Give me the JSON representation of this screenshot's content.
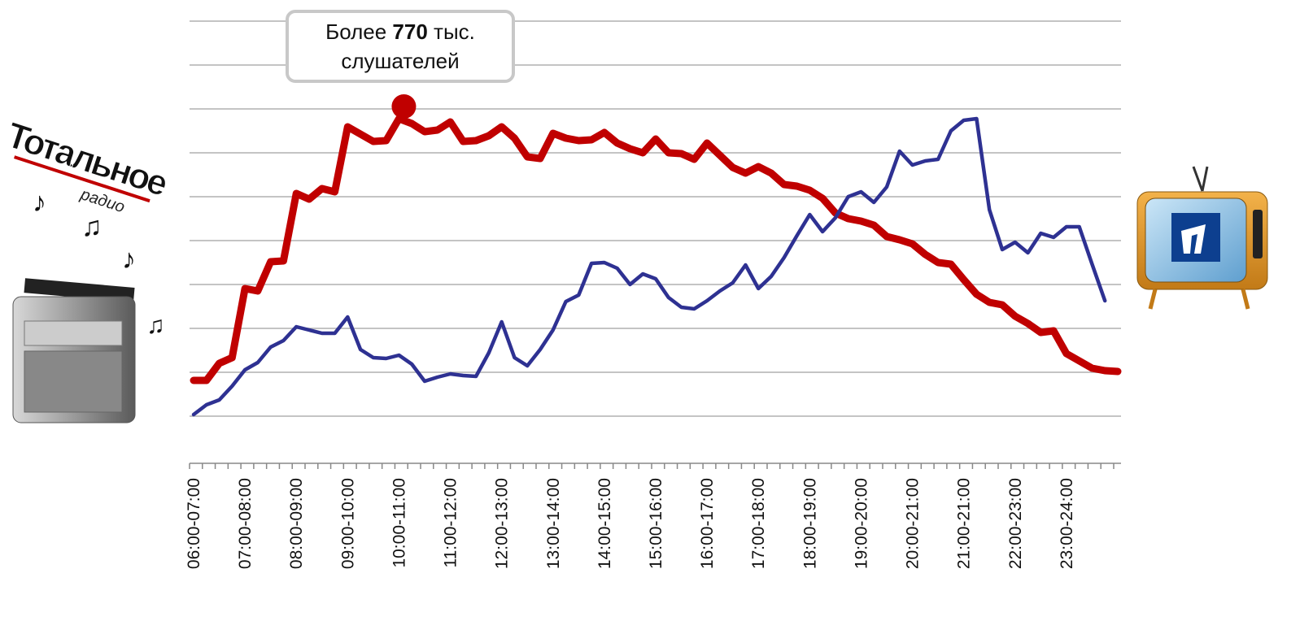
{
  "chart_data": {
    "type": "line",
    "categories": [
      "06:00-07:00",
      null,
      null,
      null,
      "07:00-08:00",
      null,
      null,
      null,
      "08:00-09:00",
      null,
      null,
      null,
      "09:00-10:00",
      null,
      null,
      null,
      "10:00-11:00",
      null,
      null,
      null,
      "11:00-12:00",
      null,
      null,
      null,
      "12:00-13:00",
      null,
      null,
      null,
      "13:00-14:00",
      null,
      null,
      null,
      "14:00-15:00",
      null,
      null,
      null,
      "15:00-16:00",
      null,
      null,
      null,
      "16:00-17:00",
      null,
      null,
      null,
      "17:00-18:00",
      null,
      null,
      null,
      "18:00-19:00",
      null,
      null,
      null,
      "19:00-20:00",
      null,
      null,
      null,
      "20:00-21:00",
      null,
      null,
      null,
      "21:00-21:00",
      null,
      null,
      null,
      "22:00-23:00",
      null,
      null,
      null,
      "23:00-24:00",
      null,
      null,
      null,
      null
    ],
    "series": [
      {
        "color": "#c00000",
        "values": [
          44,
          44,
          65,
          72,
          157,
          154,
          190,
          191,
          274,
          267,
          280,
          276,
          356,
          347,
          338,
          339,
          366,
          360,
          350,
          352,
          362,
          338,
          339,
          345,
          356,
          342,
          319,
          317,
          348,
          342,
          339,
          340,
          349,
          336,
          329,
          324,
          341,
          324,
          323,
          316,
          336,
          321,
          306,
          299,
          307,
          299,
          285,
          283,
          278,
          268,
          250,
          243,
          240,
          235,
          221,
          217,
          212,
          199,
          189,
          187,
          168,
          150,
          140,
          137,
          123,
          114,
          103,
          105,
          77,
          68,
          59,
          56,
          55
        ]
      },
      {
        "color": "#2e3192",
        "values": [
          2,
          14,
          20,
          37,
          57,
          66,
          85,
          93,
          110,
          106,
          102,
          102,
          122,
          82,
          72,
          71,
          75,
          64,
          43,
          48,
          52,
          50,
          49,
          78,
          116,
          72,
          62,
          82,
          106,
          141,
          149,
          188,
          189,
          182,
          162,
          175,
          169,
          146,
          134,
          132,
          142,
          154,
          164,
          186,
          157,
          172,
          195,
          222,
          248,
          227,
          244,
          270,
          276,
          263,
          282,
          326,
          309,
          314,
          316,
          351,
          364,
          366,
          254,
          205,
          214,
          201,
          225,
          220,
          233,
          233,
          187,
          142,
          null
        ]
      }
    ],
    "ylim": [
      0,
      486
    ],
    "yticks": [
      0,
      54,
      108,
      162,
      216,
      270,
      324,
      378,
      432,
      486
    ],
    "grid": true,
    "annotation": {
      "prefix": "Более",
      "value": 770,
      "suffix": "тыс.",
      "line2": "слушателей"
    }
  },
  "left_logo": {
    "title": "Тотальное",
    "subtitle": "радио"
  }
}
